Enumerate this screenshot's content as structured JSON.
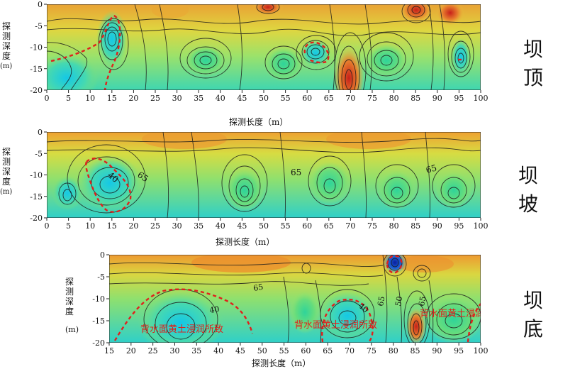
{
  "panels": [
    {
      "id": "top",
      "side_label": "坝顶",
      "ylabel_chars": [
        "探",
        "测",
        "深",
        "度"
      ],
      "ylabel_unit": "(m)",
      "xlabel": "探测长度（m）",
      "x_ticks": [
        0,
        5,
        10,
        15,
        20,
        25,
        30,
        35,
        40,
        45,
        50,
        55,
        60,
        65,
        70,
        75,
        80,
        85,
        90,
        95,
        100
      ],
      "y_ticks": [
        0,
        -5,
        -10,
        -15,
        -20
      ],
      "contour_labels": [],
      "annotations": []
    },
    {
      "id": "slope",
      "side_label": "坝坡",
      "ylabel_chars": [
        "探",
        "测",
        "深",
        "度"
      ],
      "ylabel_unit": "(m)",
      "xlabel": "探测长度（m）",
      "x_ticks": [
        0,
        5,
        10,
        15,
        20,
        25,
        30,
        35,
        40,
        45,
        50,
        55,
        60,
        65,
        70,
        75,
        80,
        85,
        90,
        95,
        100
      ],
      "y_ticks": [
        0,
        -5,
        -10,
        -15,
        -20
      ],
      "contour_labels": [
        "40",
        "65",
        "65",
        "65"
      ],
      "annotations": []
    },
    {
      "id": "bottom",
      "side_label": "坝底",
      "ylabel_chars": [
        "探",
        "测",
        "深",
        "度"
      ],
      "ylabel_unit": "(m)",
      "xlabel": "探测长度（m）",
      "x_ticks": [
        15,
        20,
        25,
        30,
        35,
        40,
        45,
        50,
        55,
        60,
        65,
        70,
        75,
        80,
        85,
        90,
        95,
        100
      ],
      "y_ticks": [
        0,
        -5,
        -10,
        -15,
        -20
      ],
      "contour_labels": [
        "65",
        "40",
        "40",
        "65",
        "50",
        "65"
      ],
      "annotations": [
        "背水面黄土浸润所致",
        "背水面黄土浸润所致",
        "背水面黄土浸润所致"
      ]
    }
  ],
  "chart_data": [
    {
      "type": "heatmap",
      "title": "坝顶",
      "xlabel": "探测长度（m）",
      "ylabel": "探测深度（m）",
      "xlim": [
        0,
        100
      ],
      "ylim": [
        -20,
        0
      ],
      "colorscale": [
        "#0fd0e0",
        "#7fe07a",
        "#d9e840",
        "#f2b33a",
        "#d43a1c"
      ]
    },
    {
      "type": "heatmap",
      "title": "坝坡",
      "xlabel": "探测长度（m）",
      "ylabel": "探测深度（m）",
      "xlim": [
        0,
        100
      ],
      "ylim": [
        -20,
        0
      ],
      "contour_levels_shown": [
        40,
        65
      ]
    },
    {
      "type": "heatmap",
      "title": "坝底",
      "xlabel": "探测长度（m）",
      "ylabel": "探测深度（m）",
      "xlim": [
        15,
        100
      ],
      "ylim": [
        -20,
        0
      ],
      "contour_levels_shown": [
        40,
        50,
        65
      ]
    }
  ]
}
